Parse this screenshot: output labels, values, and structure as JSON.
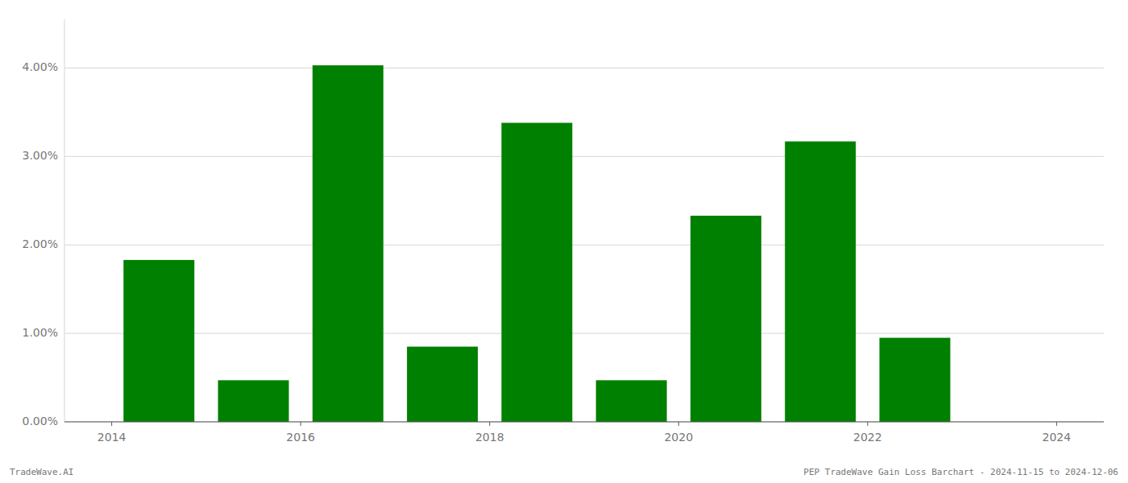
{
  "chart_data": {
    "type": "bar",
    "title": "PEP TradeWave Gain Loss Barchart - 2024-11-15 to 2024-12-06",
    "annotations": [
      "TradeWave.AI"
    ],
    "x": [
      2014.5,
      2015.5,
      2016.5,
      2017.5,
      2018.5,
      2019.5,
      2020.5,
      2021.5,
      2022.5
    ],
    "values": [
      1.83,
      0.47,
      4.03,
      0.85,
      3.38,
      0.47,
      2.33,
      3.17,
      0.95
    ],
    "color": "#008000",
    "xlim": [
      2013.5,
      2024.5
    ],
    "xticks": [
      2014,
      2016,
      2018,
      2020,
      2022,
      2024
    ],
    "ylim": [
      0,
      4.55
    ],
    "yticks": [
      {
        "value": 0.0,
        "label": "0.00%"
      },
      {
        "value": 1.0,
        "label": "1.00%"
      },
      {
        "value": 2.0,
        "label": "2.00%"
      },
      {
        "value": 3.0,
        "label": "3.00%"
      },
      {
        "value": 4.0,
        "label": "4.00%"
      }
    ],
    "grid": true
  }
}
